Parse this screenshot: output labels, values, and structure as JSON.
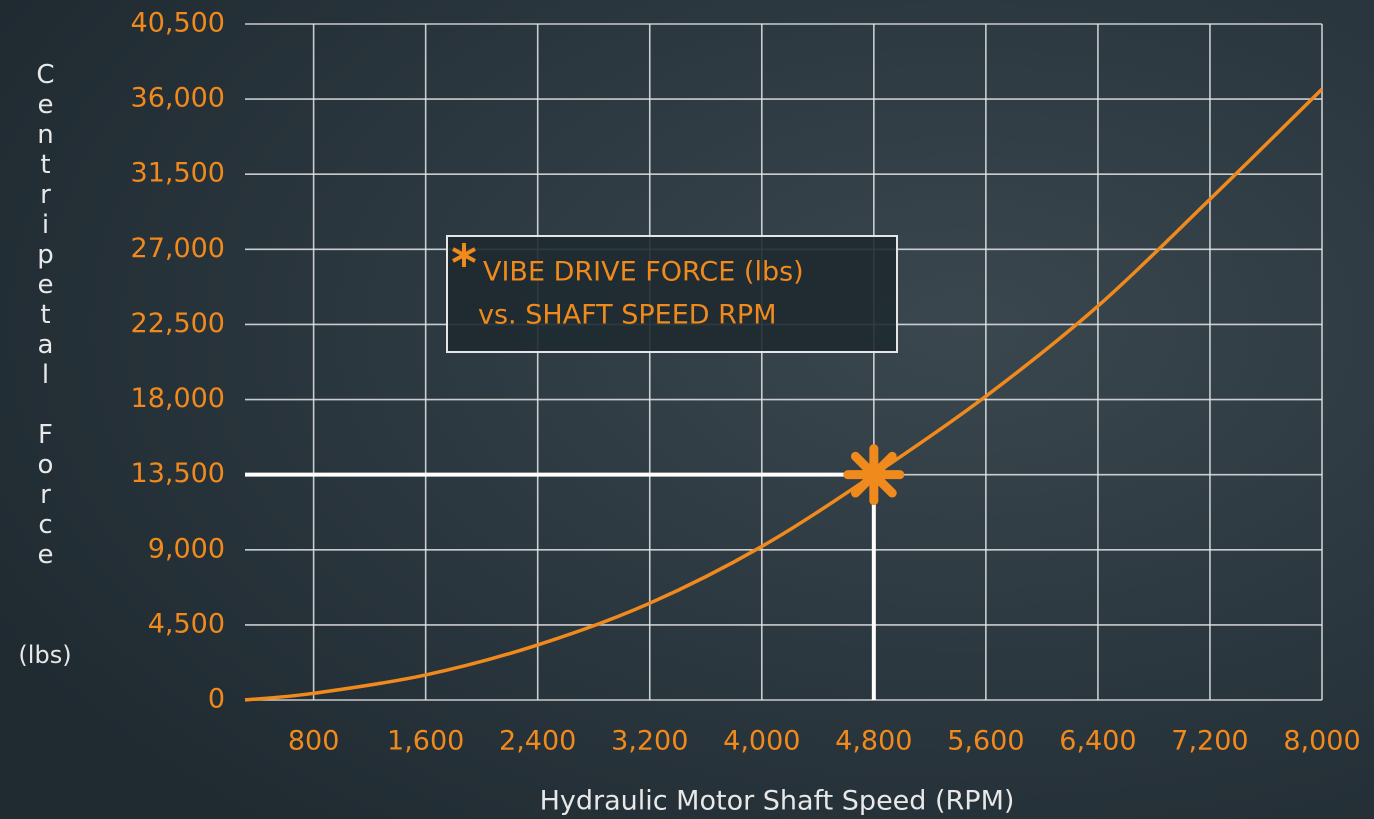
{
  "chart_data": {
    "type": "line",
    "y_label": "Centripetal Force",
    "y_label_unit": "(lbs)",
    "x_label": "Hydraulic Motor Shaft Speed (RPM)",
    "annotation": [
      "VIBE DRIVE FORCE (lbs)",
      "vs. SHAFT SPEED RPM"
    ],
    "x": [
      310,
      800,
      1600,
      2400,
      3200,
      4000,
      4800,
      5600,
      6400,
      7200,
      8000
    ],
    "series": [
      {
        "color": "#f08a1c",
        "values": [
          0,
          400,
          1500,
          3300,
          5800,
          9200,
          13500,
          18200,
          23600,
          30000,
          36600
        ]
      }
    ],
    "highlight": {
      "x": 4800,
      "y": 13500
    },
    "xlim": [
      310,
      8000
    ],
    "ylim": [
      0,
      40500
    ],
    "xticks": [
      800,
      {
        "value": 1600,
        "label": "1,600"
      },
      {
        "value": 2400,
        "label": "2,400"
      },
      {
        "value": 3200,
        "label": "3,200"
      },
      {
        "value": 4000,
        "label": "4,000"
      },
      {
        "value": 4800,
        "label": "4,800"
      },
      {
        "value": 5600,
        "label": "5,600"
      },
      {
        "value": 6400,
        "label": "6,400"
      },
      {
        "value": 7200,
        "label": "7,200"
      },
      {
        "value": 8000,
        "label": "8,000"
      }
    ],
    "yticks": [
      0,
      {
        "value": 4500,
        "label": "4,500"
      },
      {
        "value": 9000,
        "label": "9,000"
      },
      {
        "value": 13500,
        "label": "13,500"
      },
      {
        "value": 18000,
        "label": "18,000"
      },
      {
        "value": 22500,
        "label": "22,500"
      },
      {
        "value": 27000,
        "label": "27,000"
      },
      {
        "value": 31500,
        "label": "31,500"
      },
      {
        "value": 36000,
        "label": "36,000"
      },
      {
        "value": 40500,
        "label": "40,500"
      }
    ],
    "grid": true
  }
}
